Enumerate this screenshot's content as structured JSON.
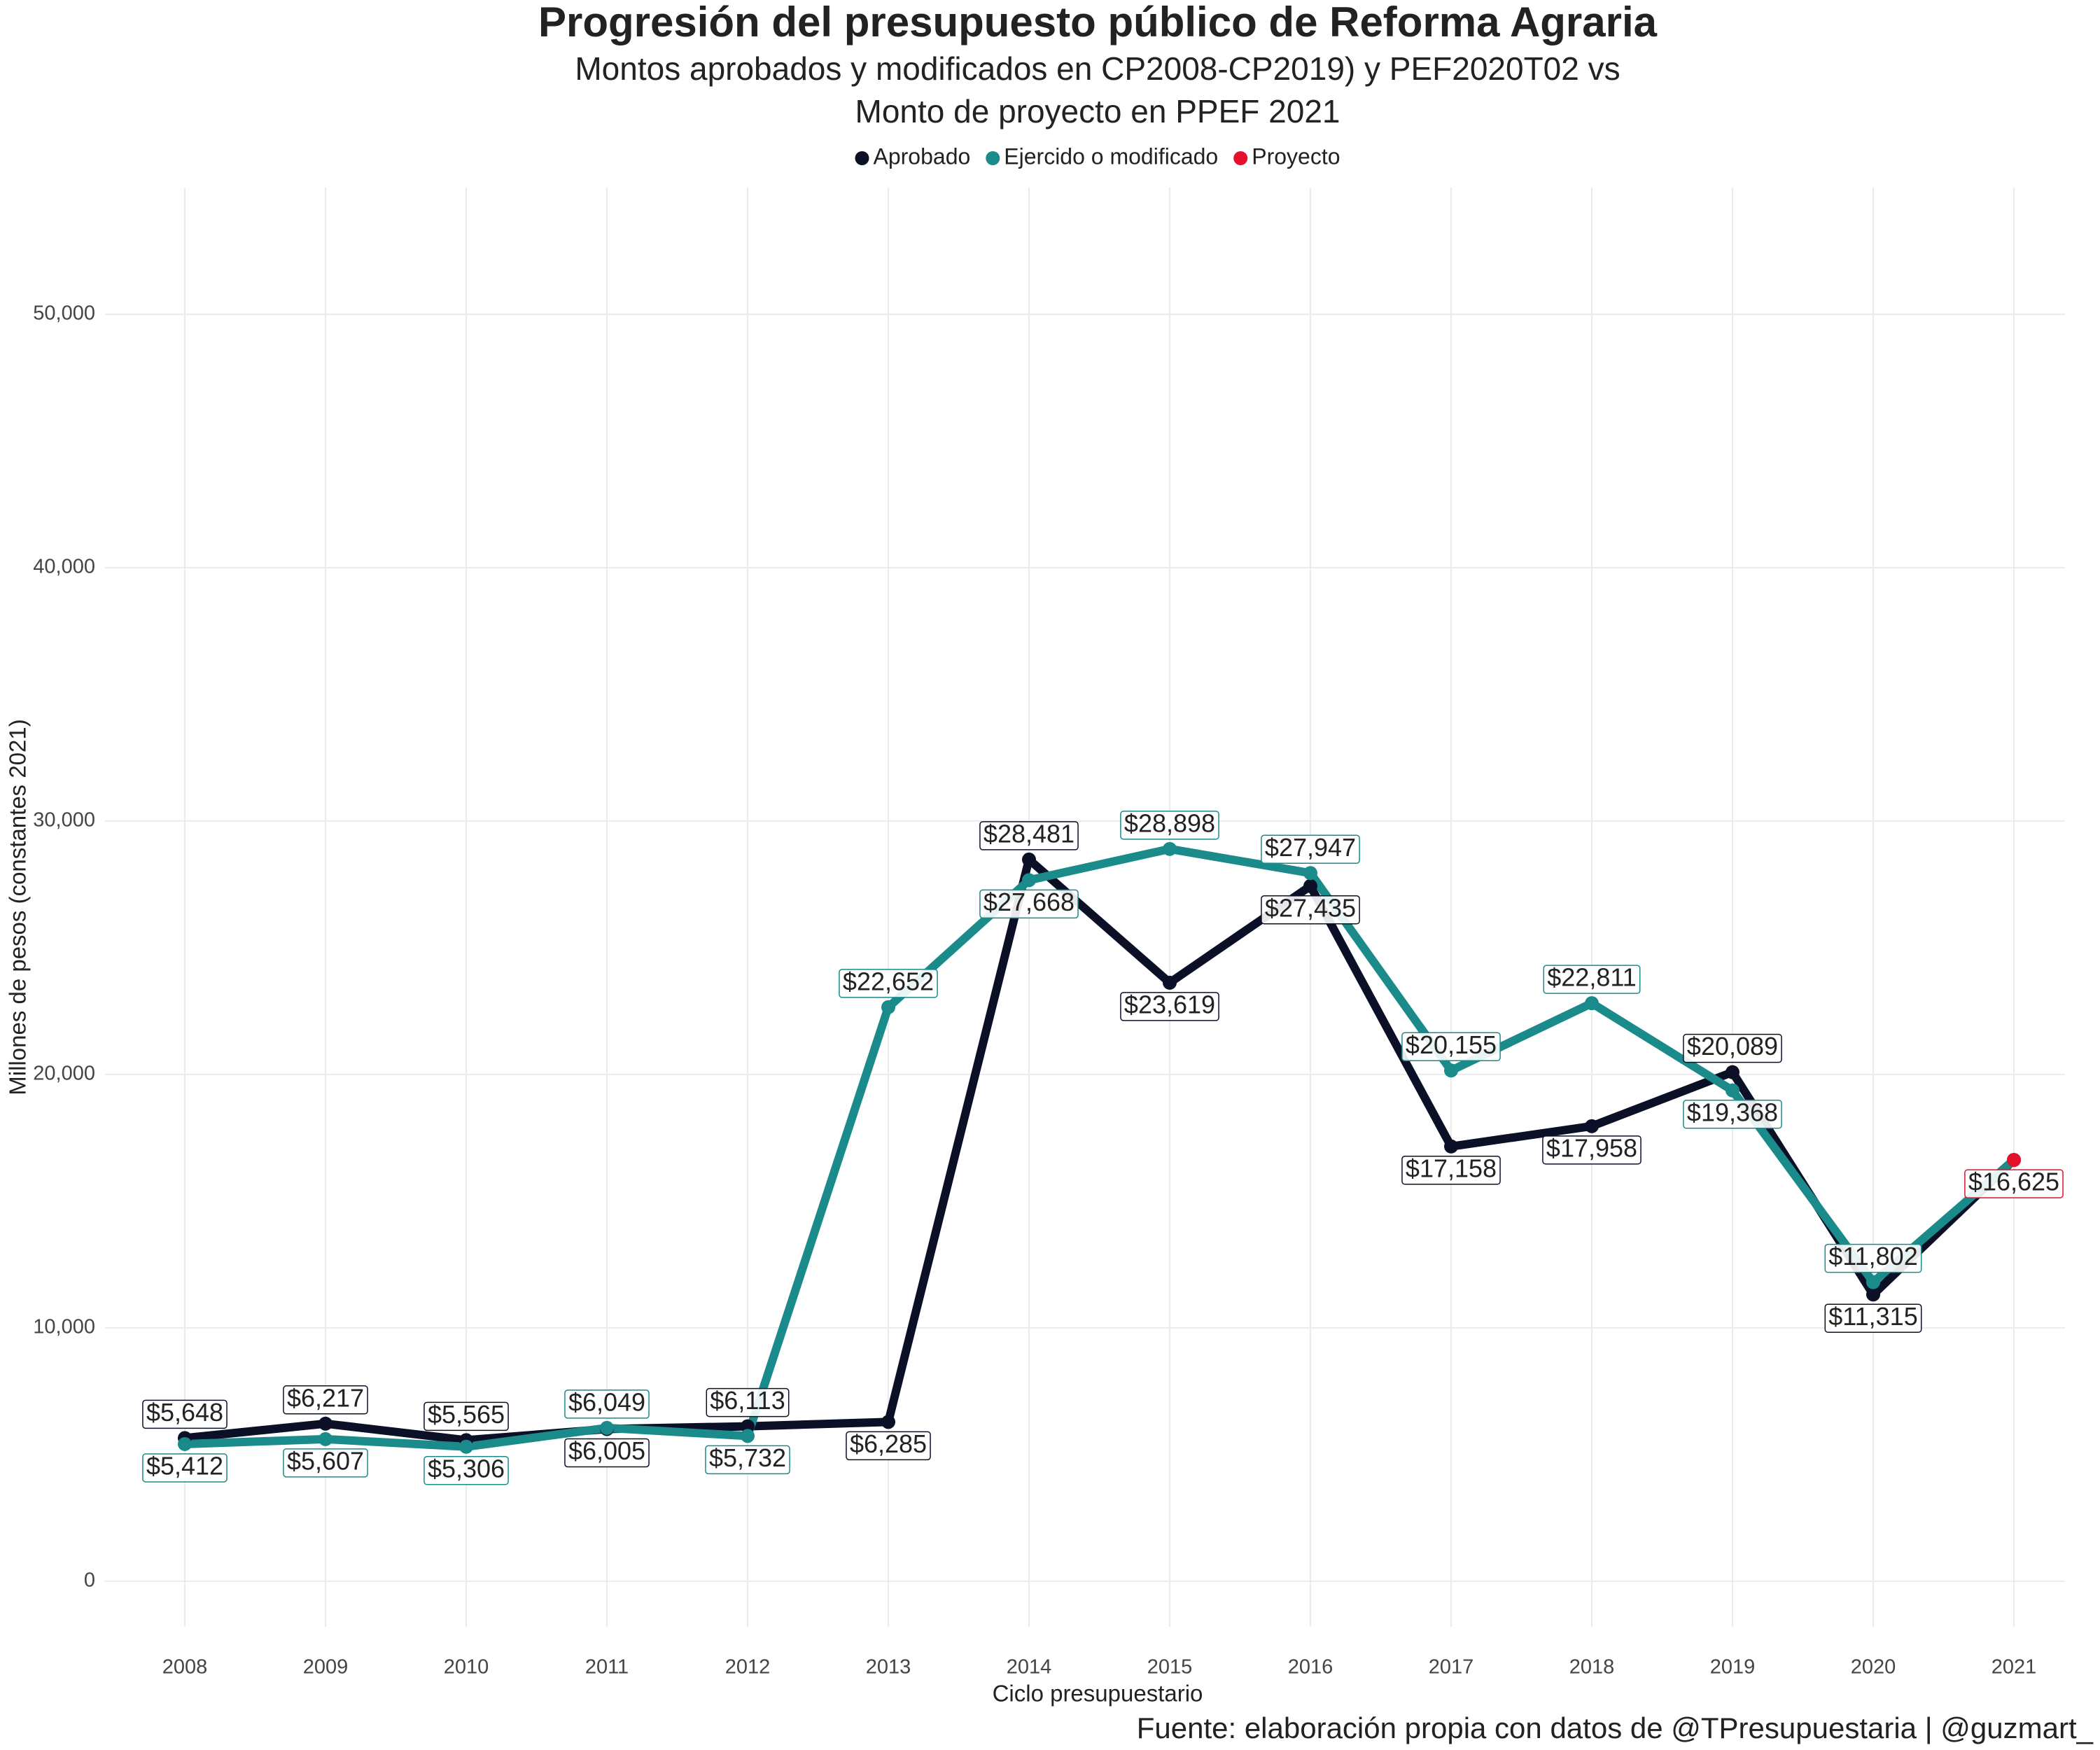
{
  "chart_data": {
    "type": "line",
    "title": "Progresión del presupuesto público de Reforma Agraria",
    "subtitle": [
      "Montos aprobados y modificados en CP2008-CP2019) y PEF2020T02 vs",
      "Monto de proyecto en PPEF 2021"
    ],
    "x_label": "Ciclo presupuestario",
    "y_label": "Millones de pesos (constantes 2021)",
    "caption": "Fuente: elaboración propia con datos de @TPresupuestaria | @guzmart_",
    "categories": [
      "2008",
      "2009",
      "2010",
      "2011",
      "2012",
      "2013",
      "2014",
      "2015",
      "2016",
      "2017",
      "2018",
      "2019",
      "2020",
      "2021"
    ],
    "series": [
      {
        "name": "Aprobado",
        "color": "#0b1027",
        "values": [
          5648,
          6217,
          5565,
          6005,
          6113,
          6285,
          28481,
          23619,
          27435,
          17158,
          17958,
          20089,
          11315,
          16625
        ],
        "value_labels": [
          "$5,648",
          "$6,217",
          "$5,565",
          "$6,005",
          "$6,113",
          "$6,285",
          "$28,481",
          "$23,619",
          "$27,435",
          "$17,158",
          "$17,958",
          "$20,089",
          "$11,315",
          null
        ]
      },
      {
        "name": "Ejercido o modificado",
        "color": "#1a8a8a",
        "values": [
          5412,
          5607,
          5306,
          6049,
          5732,
          22652,
          27668,
          28898,
          27947,
          20155,
          22811,
          19368,
          11802,
          16625
        ],
        "value_labels": [
          "$5,412",
          "$5,607",
          "$5,306",
          "$6,049",
          "$5,732",
          "$22,652",
          "$27,668",
          "$28,898",
          "$27,947",
          "$20,155",
          "$22,811",
          "$19,368",
          "$11,802",
          null
        ]
      },
      {
        "name": "Proyecto",
        "color": "#e4102c",
        "values": [
          null,
          null,
          null,
          null,
          null,
          null,
          null,
          null,
          null,
          null,
          null,
          null,
          null,
          16625
        ],
        "value_labels": [
          null,
          null,
          null,
          null,
          null,
          null,
          null,
          null,
          null,
          null,
          null,
          null,
          null,
          "$16,625"
        ]
      }
    ],
    "ylim": [
      -1800,
      55000
    ],
    "yticks": [
      0,
      {
        "value": 10000,
        "label": "10,000"
      },
      {
        "value": 20000,
        "label": "20,000"
      },
      {
        "value": 30000,
        "label": "30,000"
      },
      {
        "value": 40000,
        "label": "40,000"
      },
      {
        "value": 50000,
        "label": "50,000"
      }
    ],
    "grid": true,
    "legend": "top"
  }
}
